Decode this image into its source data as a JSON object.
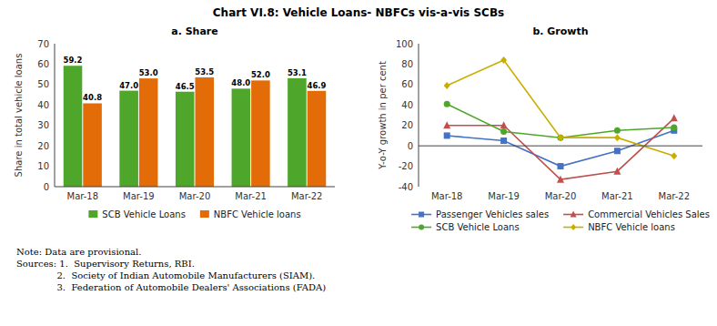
{
  "title": "Chart VI.8: Vehicle Loans- NBFCs vis-a-vis SCBs",
  "annotations": [
    "Note: Data are provisional.",
    "Sources: 1.  Supervisory Returns, RBI.",
    "              2.  Society of Indian Automobile Manufacturers (SIAM).",
    "              3.  Federation of Automobile Dealers' Associations (FADA)"
  ],
  "chart_data": [
    {
      "type": "bar",
      "title": "a. Share",
      "y_label": "Share in total vehicle loans",
      "categories": [
        "Mar-18",
        "Mar-19",
        "Mar-20",
        "Mar-21",
        "Mar-22"
      ],
      "series": [
        {
          "name": "SCB Vehicle Loans",
          "color": "#4EA72A",
          "values": [
            59.2,
            47.0,
            46.5,
            48.0,
            53.1
          ],
          "value_labels": [
            "59.2",
            "47.0",
            "46.5",
            "48.0",
            "53.1"
          ]
        },
        {
          "name": "NBFC Vehicle loans",
          "color": "#E36C09",
          "values": [
            40.8,
            53.0,
            53.5,
            52.0,
            46.9
          ],
          "value_labels": [
            "40.8",
            "53.0",
            "53.5",
            "52.0",
            "46.9"
          ]
        }
      ],
      "ylim": [
        0,
        70
      ],
      "yticks": [
        0,
        10,
        20,
        30,
        40,
        50,
        60,
        70
      ],
      "grid": false,
      "legend": "bottom",
      "data_labels": true
    },
    {
      "type": "line",
      "title": "b. Growth",
      "y_label": "Y-o-Y growth in per cent",
      "categories": [
        "Mar-18",
        "Mar-19",
        "Mar-20",
        "Mar-21",
        "Mar-22"
      ],
      "series": [
        {
          "name": "Passenger Vehicles sales",
          "color": "#4472C4",
          "marker": "square",
          "values": [
            10,
            5,
            -20,
            -5,
            15
          ]
        },
        {
          "name": "Commercial Vehicles Sales",
          "color": "#C0504D",
          "marker": "triangle",
          "values": [
            20,
            20,
            -33,
            -25,
            27
          ]
        },
        {
          "name": "SCB Vehicle Loans",
          "color": "#4EA72A",
          "marker": "circle",
          "values": [
            41,
            14,
            8,
            15,
            18
          ]
        },
        {
          "name": "NBFC Vehicle loans",
          "color": "#C9AE00",
          "marker": "diamond",
          "values": [
            59,
            84,
            8,
            8,
            -10
          ]
        }
      ],
      "ylim": [
        -40,
        100
      ],
      "yticks": [
        -40,
        -20,
        0,
        20,
        40,
        60,
        80,
        100
      ],
      "grid": false,
      "legend": "bottom"
    }
  ]
}
